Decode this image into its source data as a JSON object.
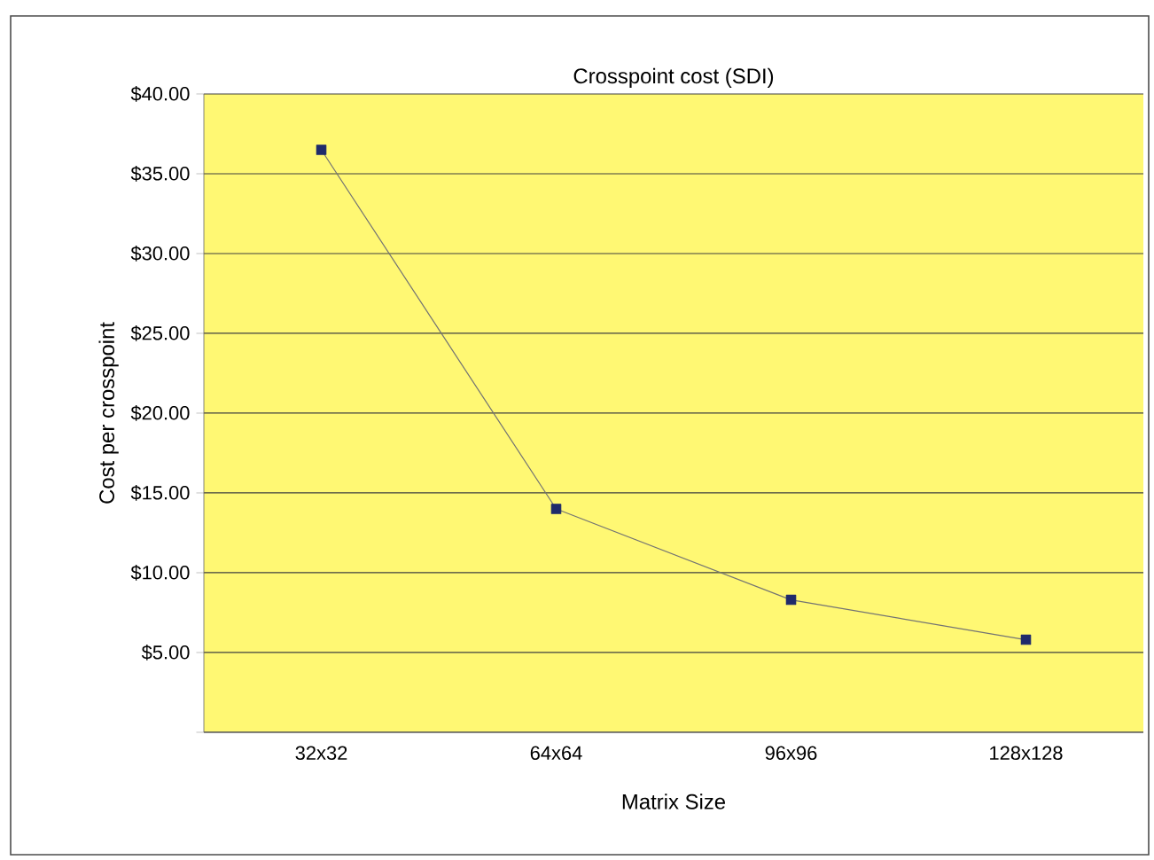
{
  "chart_data": {
    "type": "line",
    "title": "Crosspoint cost (SDI)",
    "xlabel": "Matrix Size",
    "ylabel": "Cost per crosspoint",
    "categories": [
      "32x32",
      "64x64",
      "96x96",
      "128x128"
    ],
    "series": [
      {
        "color": "#1f2a6b",
        "values": [
          36.5,
          14.0,
          8.3,
          5.8
        ]
      }
    ],
    "ylim": [
      0,
      40
    ],
    "yticks": [
      {
        "value": 0,
        "label": null
      },
      {
        "value": 5,
        "label": "$5.00"
      },
      {
        "value": 10,
        "label": "$10.00"
      },
      {
        "value": 15,
        "label": "$15.00"
      },
      {
        "value": 20,
        "label": "$20.00"
      },
      {
        "value": 25,
        "label": "$25.00"
      },
      {
        "value": 30,
        "label": "$30.00"
      },
      {
        "value": 35,
        "label": "$35.00"
      },
      {
        "value": 40,
        "label": "$40.00"
      }
    ],
    "grid": "y",
    "marker": "square"
  }
}
